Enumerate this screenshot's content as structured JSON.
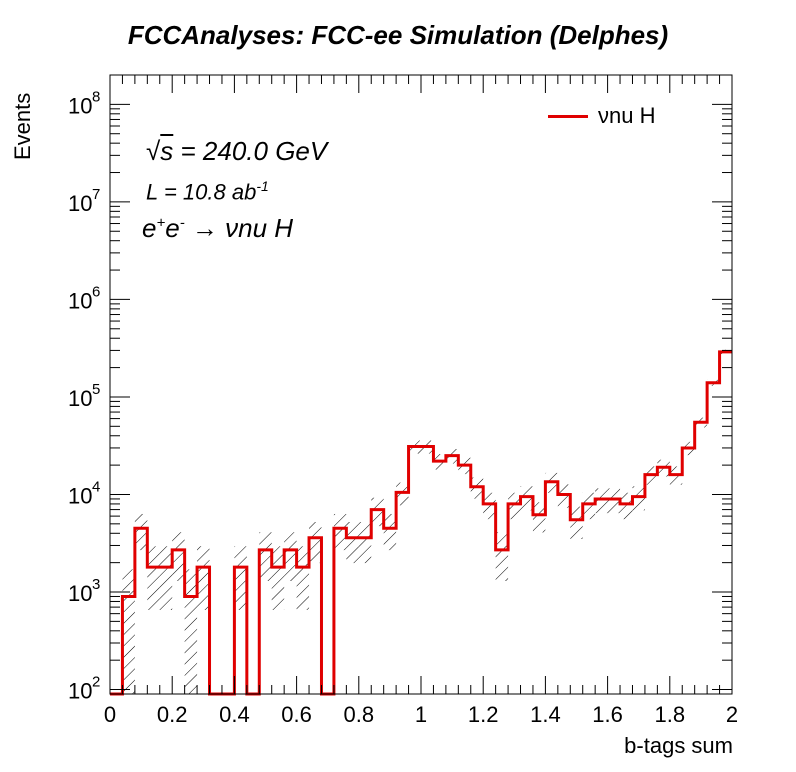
{
  "chart_data": {
    "type": "histogram",
    "title": "FCCAnalyses: FCC-ee Simulation (Delphes)",
    "xlabel": "b-tags sum",
    "ylabel": "Events",
    "xlim": [
      0,
      2
    ],
    "ylim": [
      90,
      200000000
    ],
    "yscale": "log",
    "xticks": [
      "0",
      "0.2",
      "0.4",
      "0.6",
      "0.8",
      "1",
      "1.2",
      "1.4",
      "1.6",
      "1.8",
      "2"
    ],
    "yticks": [
      "10",
      "10",
      "10",
      "10",
      "10",
      "10",
      "10"
    ],
    "ytick_exponents": [
      "2",
      "3",
      "4",
      "5",
      "6",
      "7",
      "8"
    ],
    "legend_location": "top-right",
    "bin_width": 0.04,
    "series": [
      {
        "name": "νnu H",
        "color": "#e00000",
        "bin_edges_start": 0,
        "values": [
          0,
          900,
          4500,
          1800,
          1800,
          2700,
          900,
          1800,
          0,
          0,
          1800,
          0,
          2700,
          1800,
          2700,
          1800,
          3600,
          0,
          4500,
          3600,
          3600,
          7000,
          4500,
          10500,
          31000,
          31000,
          22000,
          25000,
          20000,
          12000,
          8000,
          2700,
          8000,
          9500,
          6200,
          13500,
          10000,
          5500,
          8000,
          9000,
          9000,
          8000,
          9500,
          16000,
          19000,
          16000,
          30000,
          55000,
          140000,
          290000
        ]
      }
    ],
    "annotations": {
      "sqrt_s": "s",
      "energy": " = 240.0 GeV",
      "lumi_prefix": "L = 10.8 ab",
      "lumi_exp": "-1",
      "process_prefix": "e",
      "process_plus": "+",
      "process_e2": "e",
      "process_minus": "-",
      "process_arrow": " → ",
      "process_final": "νnu H"
    }
  }
}
